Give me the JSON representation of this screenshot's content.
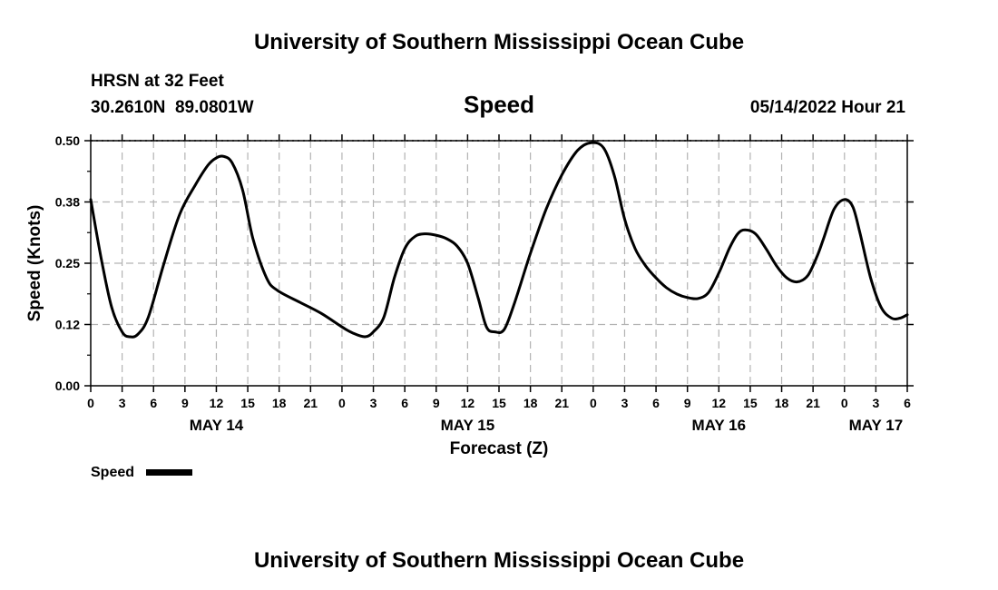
{
  "header": {
    "title": "University of Southern Mississippi Ocean Cube",
    "station": "HRSN at 32 Feet",
    "coords": "30.2610N  89.0801W",
    "variable": "Speed",
    "timestamp": "05/14/2022 Hour 21"
  },
  "footer": {
    "title": "University of Southern Mississippi Ocean Cube"
  },
  "legend": {
    "label": "Speed"
  },
  "chart_data": {
    "type": "line",
    "title": "Speed",
    "xlabel": "Forecast (Z)",
    "ylabel": "Speed (Knots)",
    "xlim": [
      0,
      78
    ],
    "ylim": [
      0,
      0.5
    ],
    "y_ticks": [
      "0.00",
      "0.12",
      "0.25",
      "0.38",
      "0.50"
    ],
    "x_tick_labels": [
      "0",
      "3",
      "6",
      "9",
      "12",
      "15",
      "18",
      "21",
      "0",
      "3",
      "6",
      "9",
      "12",
      "15",
      "18",
      "21",
      "0",
      "3",
      "6",
      "9",
      "12",
      "15",
      "18",
      "21",
      "0",
      "3",
      "6"
    ],
    "date_labels": [
      {
        "hour": 12,
        "text": "MAY 14"
      },
      {
        "hour": 36,
        "text": "MAY 15"
      },
      {
        "hour": 60,
        "text": "MAY 16"
      },
      {
        "hour": 75,
        "text": "MAY 17"
      }
    ],
    "grid": true,
    "series": [
      {
        "name": "Speed",
        "color": "#000000",
        "x": [
          0,
          1,
          2,
          3,
          3.7,
          4.5,
          5.5,
          7,
          8.5,
          10,
          11.2,
          12,
          12.7,
          13.5,
          14.5,
          15.5,
          16.8,
          17.8,
          20,
          22,
          24,
          25,
          26.2,
          27,
          28,
          29,
          30,
          31,
          32,
          33,
          34,
          35,
          36,
          37,
          37.8,
          38.6,
          39.5,
          40.5,
          42,
          43.5,
          45,
          46.5,
          47.8,
          49,
          50,
          51,
          52,
          53,
          54,
          55,
          56,
          57,
          58,
          59,
          60,
          61,
          61.8,
          62.5,
          63.5,
          64.5,
          65.5,
          66.5,
          67.5,
          68.5,
          69.4,
          70,
          71,
          72,
          72.8,
          73.5,
          74.5,
          75.5,
          76.5,
          77.3,
          78
        ],
        "values": [
          0.38,
          0.26,
          0.16,
          0.11,
          0.1,
          0.105,
          0.14,
          0.25,
          0.35,
          0.41,
          0.45,
          0.465,
          0.468,
          0.455,
          0.4,
          0.3,
          0.22,
          0.195,
          0.17,
          0.148,
          0.12,
          0.108,
          0.1,
          0.11,
          0.14,
          0.22,
          0.28,
          0.305,
          0.31,
          0.307,
          0.3,
          0.285,
          0.25,
          0.18,
          0.12,
          0.11,
          0.115,
          0.17,
          0.27,
          0.36,
          0.43,
          0.48,
          0.496,
          0.485,
          0.43,
          0.34,
          0.28,
          0.245,
          0.22,
          0.2,
          0.187,
          0.18,
          0.178,
          0.19,
          0.23,
          0.28,
          0.31,
          0.318,
          0.31,
          0.28,
          0.245,
          0.22,
          0.212,
          0.225,
          0.265,
          0.3,
          0.36,
          0.38,
          0.365,
          0.31,
          0.22,
          0.16,
          0.138,
          0.138,
          0.145
        ]
      }
    ]
  }
}
